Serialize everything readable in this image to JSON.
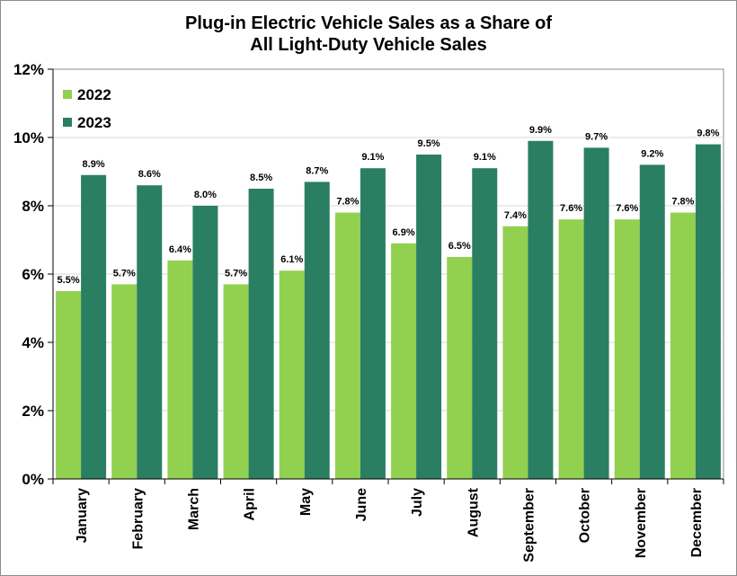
{
  "chart_data": {
    "type": "bar",
    "title_lines": [
      "Plug-in Electric Vehicle Sales as a Share of",
      "All Light-Duty Vehicle Sales"
    ],
    "categories": [
      "January",
      "February",
      "March",
      "April",
      "May",
      "June",
      "July",
      "August",
      "September",
      "October",
      "November",
      "December"
    ],
    "series": [
      {
        "name": "2022",
        "color": "#92d050",
        "values": [
          5.5,
          5.7,
          6.4,
          5.7,
          6.1,
          7.8,
          6.9,
          6.5,
          7.4,
          7.6,
          7.6,
          7.8
        ],
        "labels": [
          "5.5%",
          "5.7%",
          "6.4%",
          "5.7%",
          "6.1%",
          "7.8%",
          "6.9%",
          "6.5%",
          "7.4%",
          "7.6%",
          "7.6%",
          "7.8%"
        ]
      },
      {
        "name": "2023",
        "color": "#2a7f62",
        "values": [
          8.9,
          8.6,
          8.0,
          8.5,
          8.7,
          9.1,
          9.5,
          9.1,
          9.9,
          9.7,
          9.2,
          9.8
        ],
        "labels": [
          "8.9%",
          "8.6%",
          "8.0%",
          "8.5%",
          "8.7%",
          "9.1%",
          "9.5%",
          "9.1%",
          "9.9%",
          "9.7%",
          "9.2%",
          "9.8%"
        ]
      }
    ],
    "ylim": [
      0,
      12
    ],
    "yticks": [
      0,
      2,
      4,
      6,
      8,
      10,
      12
    ],
    "ytick_labels": [
      "0%",
      "2%",
      "4%",
      "6%",
      "8%",
      "10%",
      "12%"
    ],
    "grid": true,
    "legend_position": "top-left"
  }
}
